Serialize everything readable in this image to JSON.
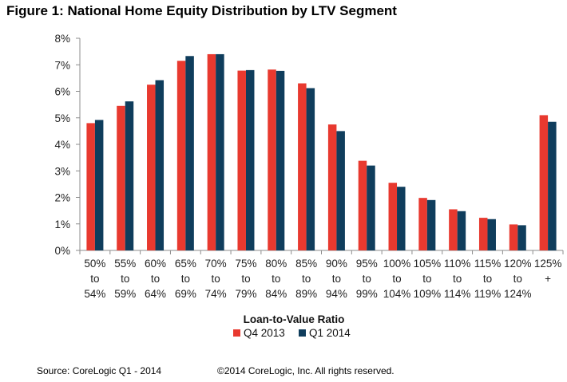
{
  "title": "Figure 1: National Home Equity Distribution by LTV Segment",
  "footer": {
    "source": "Source: CoreLogic Q1 - 2014",
    "copyright": "©2014 CoreLogic, Inc. All rights reserved."
  },
  "colors": {
    "q4_2013": "#e8392f",
    "q1_2014": "#0f3d5c"
  },
  "chart_data": {
    "type": "bar",
    "title": "Figure 1: National Home Equity Distribution by LTV Segment",
    "xlabel": "Loan-to-Value Ratio",
    "ylabel": "",
    "ylim": [
      0,
      8
    ],
    "yticks": [
      "0%",
      "1%",
      "2%",
      "3%",
      "4%",
      "5%",
      "6%",
      "7%",
      "8%"
    ],
    "grid": false,
    "legend_position": "bottom",
    "categories": [
      [
        "50%",
        "to",
        "54%"
      ],
      [
        "55%",
        "to",
        "59%"
      ],
      [
        "60%",
        "to",
        "64%"
      ],
      [
        "65%",
        "to",
        "69%"
      ],
      [
        "70%",
        "to",
        "74%"
      ],
      [
        "75%",
        "to",
        "79%"
      ],
      [
        "80%",
        "to",
        "84%"
      ],
      [
        "85%",
        "to",
        "89%"
      ],
      [
        "90%",
        "to",
        "94%"
      ],
      [
        "95%",
        "to",
        "99%"
      ],
      [
        "100%",
        "to",
        "104%"
      ],
      [
        "105%",
        "to",
        "109%"
      ],
      [
        "110%",
        "to",
        "114%"
      ],
      [
        "115%",
        "to",
        "119%"
      ],
      [
        "120%",
        "to",
        "124%"
      ],
      [
        "125%",
        "+"
      ]
    ],
    "series": [
      {
        "name": "Q4 2013",
        "values": [
          4.8,
          5.45,
          6.25,
          7.15,
          7.4,
          6.78,
          6.82,
          6.3,
          4.75,
          3.38,
          2.55,
          1.98,
          1.55,
          1.23,
          0.98,
          5.1
        ]
      },
      {
        "name": "Q1 2014",
        "values": [
          4.92,
          5.62,
          6.42,
          7.33,
          7.4,
          6.8,
          6.77,
          6.12,
          4.5,
          3.2,
          2.4,
          1.9,
          1.48,
          1.18,
          0.95,
          4.85
        ]
      }
    ]
  }
}
